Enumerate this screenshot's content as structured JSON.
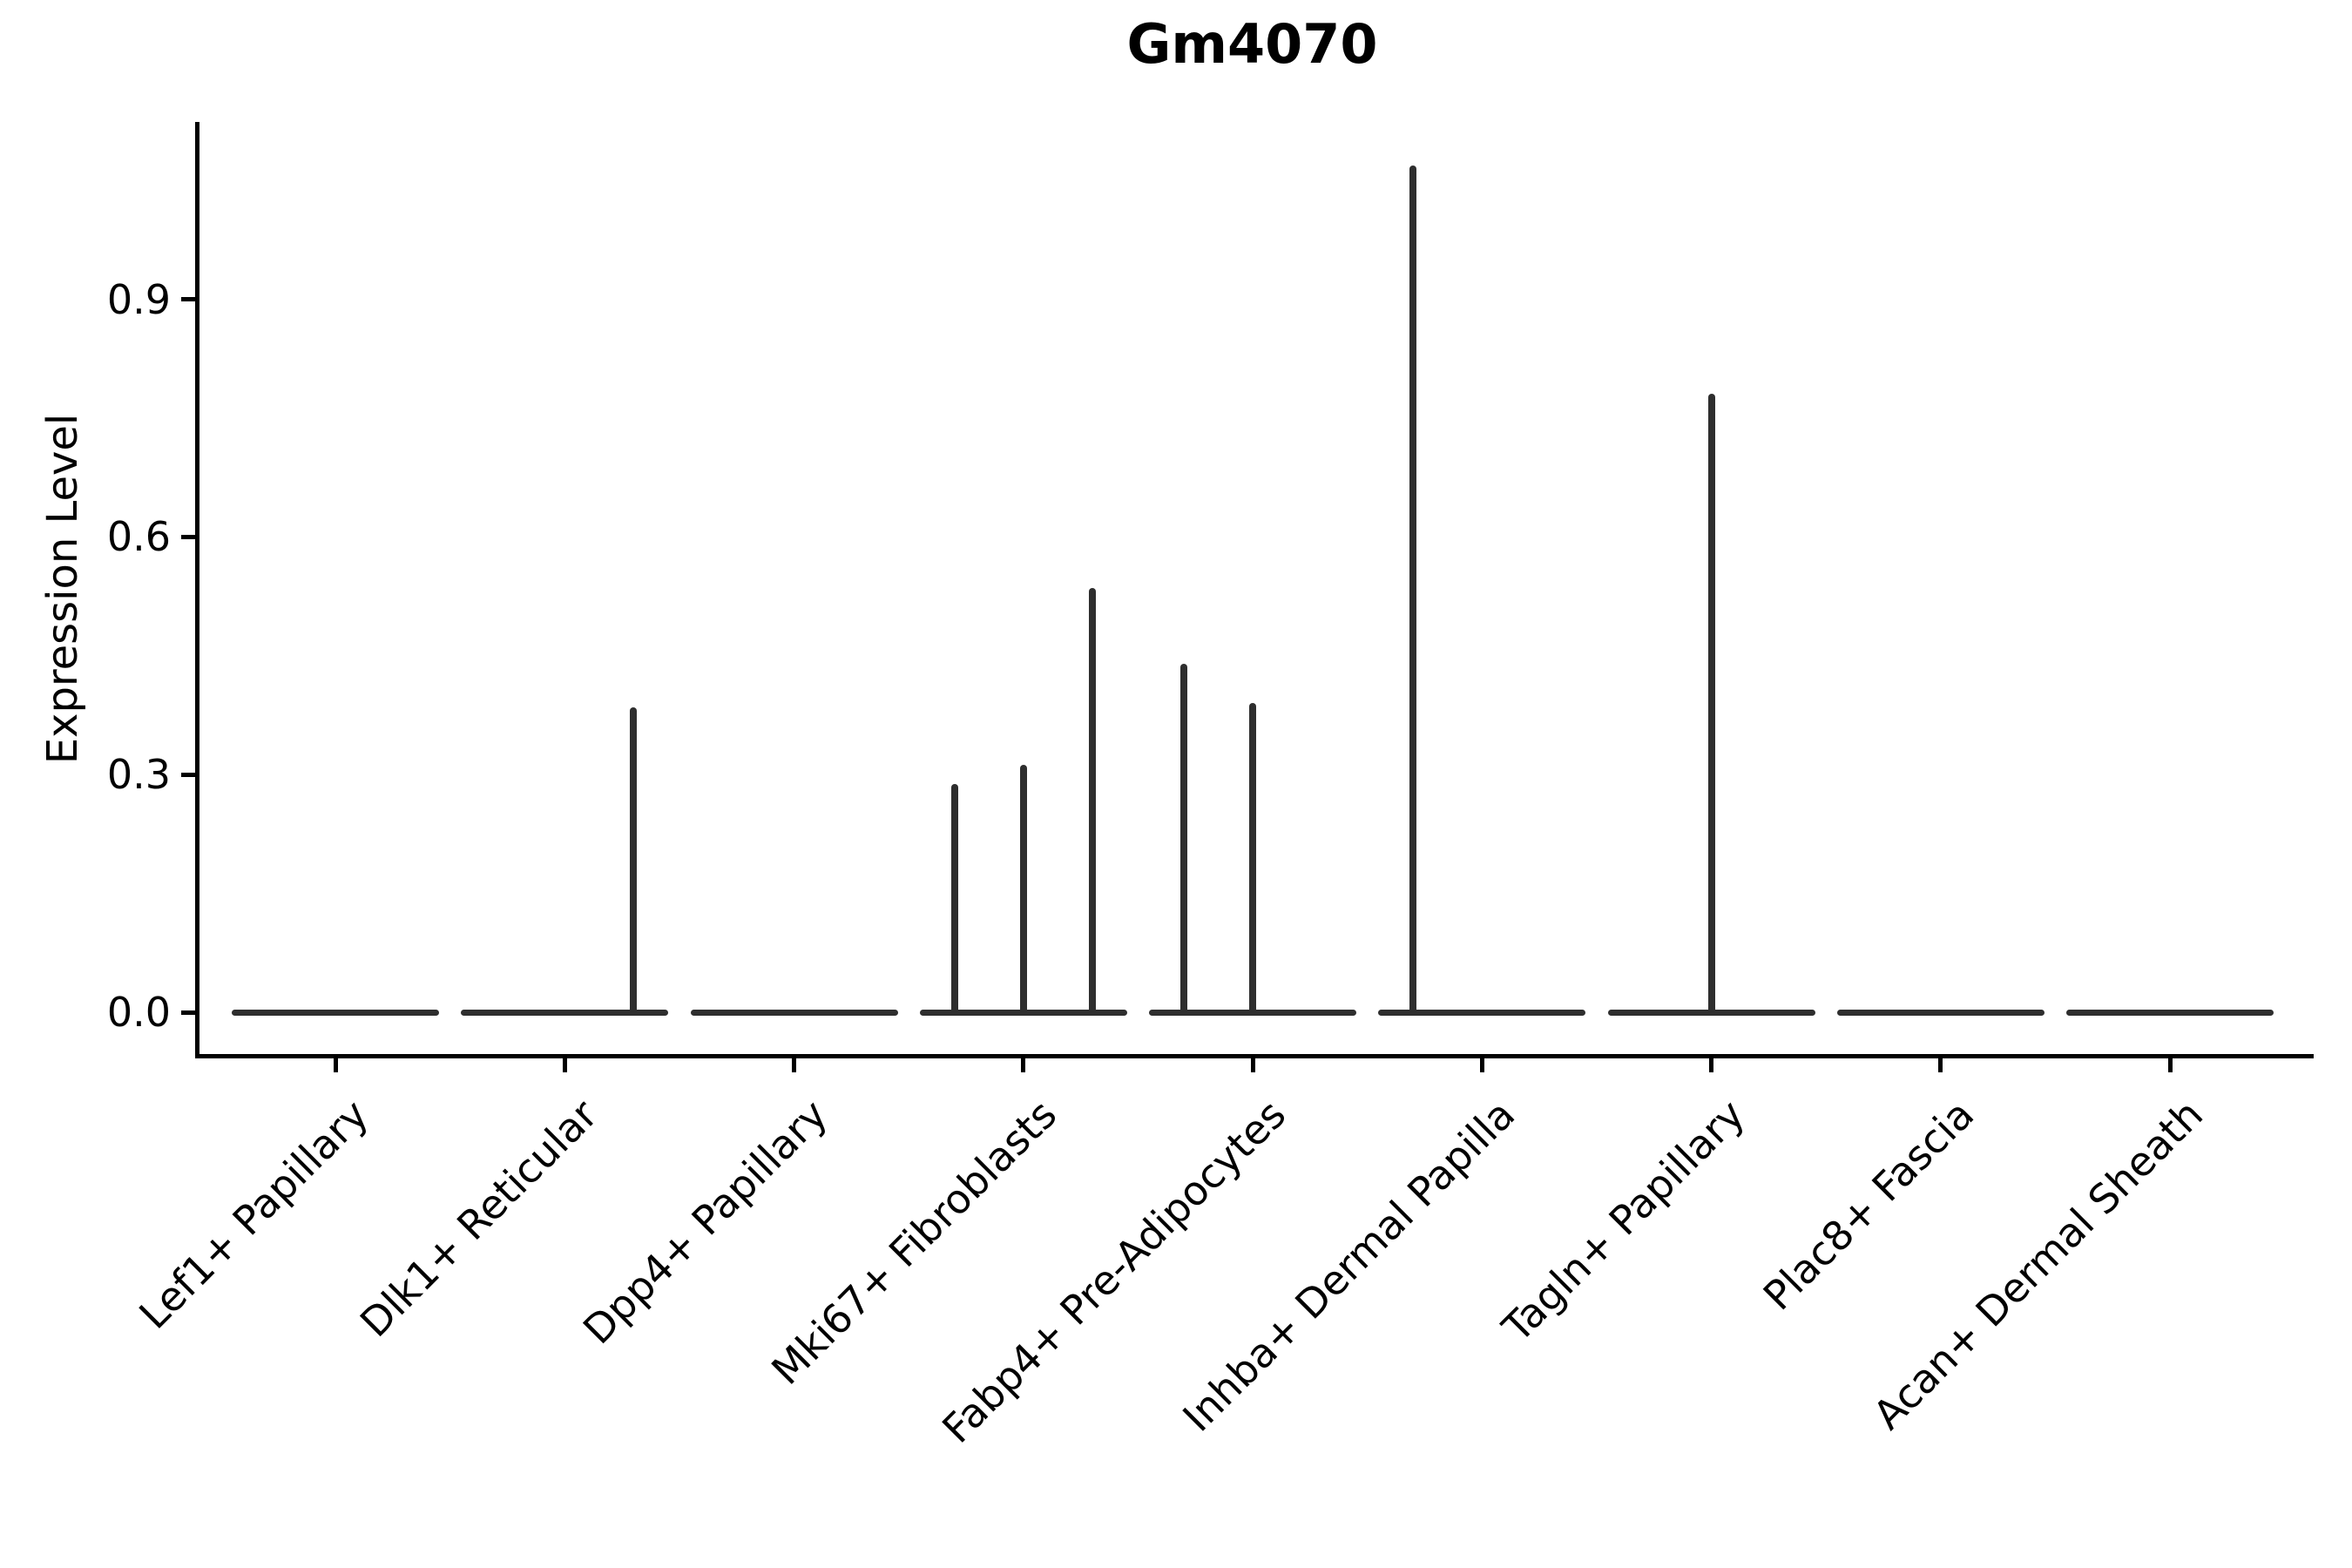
{
  "title": "Gm4070",
  "colors": {
    "background": "#ffffff",
    "violin": "#2e2e2e",
    "axis": "#000000",
    "text": "#000000"
  },
  "y_axis": {
    "label": "Expression Level",
    "tick_labels": [
      "0.0",
      "0.3",
      "0.6",
      "0.9"
    ]
  },
  "chart_data": {
    "type": "violin",
    "title": "Gm4070",
    "xlabel": "",
    "ylabel": "Expression Level",
    "ylim": [
      -0.05,
      1.12
    ],
    "yticks": [
      0.0,
      0.3,
      0.6,
      0.9
    ],
    "ytick_labels": [
      "0.0",
      "0.3",
      "0.6",
      "0.9"
    ],
    "grid": false,
    "legend": "none",
    "categories": [
      "Lef1+ Papillary",
      "Dlk1+ Reticular",
      "Dpp4+ Papillary",
      "Mki67+ Fibroblasts",
      "Fabp4+ Pre-Adipocytes",
      "Inhba+ Dermal Papilla",
      "Tagln+ Papillary",
      "Plac8+ Fascia",
      "Acan+ Dermal Sheath"
    ],
    "description": "Each category shows a violin collapsed to a flat baseline at expression 0 (nearly all cells at 0), with thin vertical spikes rising to the few positive outlier expression values. Spikes sit at sub-violin positions -1, 0 or +1 within each category slot.",
    "violins": [
      {
        "category": "Lef1+ Papillary",
        "baseline_value": 0.0,
        "spikes": []
      },
      {
        "category": "Dlk1+ Reticular",
        "baseline_value": 0.0,
        "spikes": [
          {
            "sub_position": 1,
            "value": 0.385
          }
        ]
      },
      {
        "category": "Dpp4+ Papillary",
        "baseline_value": 0.0,
        "spikes": []
      },
      {
        "category": "Mki67+ Fibroblasts",
        "baseline_value": 0.0,
        "spikes": [
          {
            "sub_position": -1,
            "value": 0.288
          },
          {
            "sub_position": 0,
            "value": 0.312
          },
          {
            "sub_position": 1,
            "value": 0.536
          }
        ]
      },
      {
        "category": "Fabp4+ Pre-Adipocytes",
        "baseline_value": 0.0,
        "spikes": [
          {
            "sub_position": -1,
            "value": 0.44
          },
          {
            "sub_position": 0,
            "value": 0.39
          }
        ]
      },
      {
        "category": "Inhba+ Dermal Papilla",
        "baseline_value": 0.0,
        "spikes": [
          {
            "sub_position": -1,
            "value": 1.069
          }
        ]
      },
      {
        "category": "Tagln+ Papillary",
        "baseline_value": 0.0,
        "spikes": [
          {
            "sub_position": 0,
            "value": 0.781
          }
        ]
      },
      {
        "category": "Plac8+ Fascia",
        "baseline_value": 0.0,
        "spikes": []
      },
      {
        "category": "Acan+ Dermal Sheath",
        "baseline_value": 0.0,
        "spikes": []
      }
    ]
  }
}
